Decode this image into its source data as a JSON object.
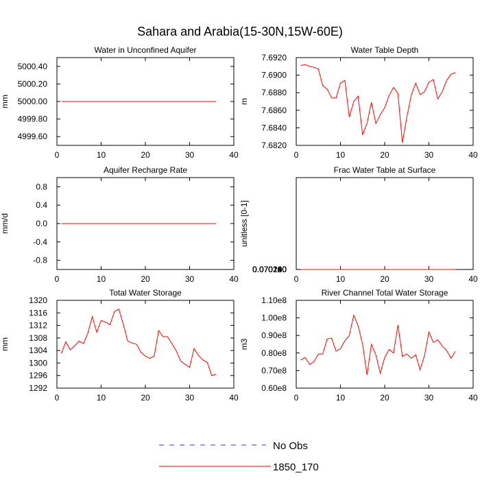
{
  "figure": {
    "title": "Sahara and Arabia(15-30N,15W-60E)"
  },
  "colors": {
    "model": "#ff0000",
    "obs": "#3030c8"
  },
  "legend": {
    "placement": "bottom-center",
    "entries": [
      {
        "label": "No Obs",
        "style": "dashed",
        "color": "#3030c8"
      },
      {
        "label": "1850_170",
        "style": "solid",
        "color": "#ff0000"
      }
    ]
  },
  "chart_data": [
    {
      "type": "line",
      "title": "Water in Unconfined Aquifer",
      "ylabel": "mm",
      "xlim": [
        0,
        40
      ],
      "ylim": [
        4999.5,
        5000.5
      ],
      "xticks": [
        0,
        10,
        20,
        30,
        40
      ],
      "yticks": [
        4999.6,
        4999.8,
        5000.0,
        5000.2,
        5000.4
      ],
      "yticklabels": [
        "4999.60",
        "4999.80",
        "5000.00",
        "5000.20",
        "5000.40"
      ],
      "series": [
        {
          "name": "1850_170",
          "x": [
            1,
            2,
            3,
            4,
            5,
            6,
            7,
            8,
            9,
            10,
            11,
            12,
            13,
            14,
            15,
            16,
            17,
            18,
            19,
            20,
            21,
            22,
            23,
            24,
            25,
            26,
            27,
            28,
            29,
            30,
            31,
            32,
            33,
            34,
            35,
            36
          ],
          "values": [
            5000,
            5000,
            5000,
            5000,
            5000,
            5000,
            5000,
            5000,
            5000,
            5000,
            5000,
            5000,
            5000,
            5000,
            5000,
            5000,
            5000,
            5000,
            5000,
            5000,
            5000,
            5000,
            5000,
            5000,
            5000,
            5000,
            5000,
            5000,
            5000,
            5000,
            5000,
            5000,
            5000,
            5000,
            5000,
            5000
          ]
        }
      ]
    },
    {
      "type": "line",
      "title": "Water Table Depth",
      "ylabel": "m",
      "xlim": [
        0,
        40
      ],
      "ylim": [
        7.682,
        7.692
      ],
      "xticks": [
        0,
        10,
        20,
        30,
        40
      ],
      "yticks": [
        7.682,
        7.684,
        7.686,
        7.688,
        7.69,
        7.692
      ],
      "yticklabels": [
        "7.6820",
        "7.6840",
        "7.6860",
        "7.6880",
        "7.6900",
        "7.6920"
      ],
      "series": [
        {
          "name": "1850_170",
          "x": [
            1,
            2,
            3,
            4,
            5,
            6,
            7,
            8,
            9,
            10,
            11,
            12,
            13,
            14,
            15,
            16,
            17,
            18,
            19,
            20,
            21,
            22,
            23,
            24,
            25,
            26,
            27,
            28,
            29,
            30,
            31,
            32,
            33,
            34,
            35,
            36
          ],
          "values": [
            7.6911,
            7.6912,
            7.691,
            7.6909,
            7.6907,
            7.6888,
            7.6884,
            7.6874,
            7.6874,
            7.6891,
            7.6894,
            7.6852,
            7.687,
            7.6876,
            7.6832,
            7.6845,
            7.6869,
            7.6845,
            7.6855,
            7.6863,
            7.6877,
            7.6886,
            7.6879,
            7.6823,
            7.6852,
            7.6877,
            7.6891,
            7.6878,
            7.6881,
            7.6892,
            7.6895,
            7.6873,
            7.6881,
            7.6894,
            7.6901,
            7.6903
          ]
        }
      ]
    },
    {
      "type": "line",
      "title": "Aquifer Recharge Rate",
      "ylabel": "mm/d",
      "xlim": [
        0,
        40
      ],
      "ylim": [
        -1.0,
        1.0
      ],
      "xticks": [
        0,
        10,
        20,
        30,
        40
      ],
      "yticks": [
        -0.8,
        -0.4,
        0.0,
        0.4,
        0.8
      ],
      "yticklabels": [
        "-0.8",
        "-0.4",
        "0.0",
        "0.4",
        "0.8"
      ],
      "series": [
        {
          "name": "1850_170",
          "x": [
            1,
            2,
            3,
            4,
            5,
            6,
            7,
            8,
            9,
            10,
            11,
            12,
            13,
            14,
            15,
            16,
            17,
            18,
            19,
            20,
            21,
            22,
            23,
            24,
            25,
            26,
            27,
            28,
            29,
            30,
            31,
            32,
            33,
            34,
            35,
            36
          ],
          "values": [
            0,
            0,
            0,
            0,
            0,
            0,
            0,
            0,
            0,
            0,
            0,
            0,
            0,
            0,
            0,
            0,
            0,
            0,
            0,
            0,
            0,
            0,
            0,
            0,
            0,
            0,
            0,
            0,
            0,
            0,
            0,
            0,
            0,
            0,
            0,
            0
          ]
        }
      ]
    },
    {
      "type": "line",
      "title": "Frac Water Table at Surface",
      "ylabel": "unitless [0-1]",
      "xlim": [
        0,
        40
      ],
      "ylim": [
        0.0701,
        0.7024
      ],
      "xticks": [
        0,
        10,
        20,
        30,
        40
      ],
      "yticks": [
        0.0701,
        0.07012,
        0.07014,
        0.07016,
        0.07018,
        0.0702,
        0.07022,
        0.07024
      ],
      "yticklabels": [
        "0.070100",
        "0.070120",
        "0.070140",
        "0.070160",
        "0.070180",
        "0.070200",
        "0.070220",
        "0.070240"
      ],
      "series": [
        {
          "name": "1850_170",
          "x": [
            1,
            2,
            3,
            4,
            5,
            6,
            7,
            8,
            9,
            10,
            11,
            12,
            13,
            14,
            15,
            16,
            17,
            18,
            19,
            20,
            21,
            22,
            23,
            24,
            25,
            26,
            27,
            28,
            29,
            30,
            31,
            32,
            33,
            34,
            35,
            36
          ],
          "values": [
            0.070111,
            0.07011,
            0.070112,
            0.070114,
            0.070116,
            0.070142,
            0.070147,
            0.07016,
            0.07016,
            0.070137,
            0.070133,
            0.07019,
            0.070166,
            0.07016,
            0.07022,
            0.070205,
            0.070168,
            0.070199,
            0.070186,
            0.070176,
            0.070155,
            0.070144,
            0.070153,
            0.070227,
            0.070193,
            0.070155,
            0.070139,
            0.070155,
            0.070151,
            0.070136,
            0.070132,
            0.070161,
            0.070154,
            0.070137,
            0.070126,
            0.070123
          ]
        }
      ]
    },
    {
      "type": "line",
      "title": "Total Water Storage",
      "ylabel": "mm",
      "xlim": [
        0,
        40
      ],
      "ylim": [
        1292,
        1320
      ],
      "xticks": [
        0,
        10,
        20,
        30,
        40
      ],
      "yticks": [
        1292,
        1296,
        1300,
        1304,
        1308,
        1312,
        1316,
        1320
      ],
      "yticklabels": [
        "1292",
        "1296",
        "1300",
        "1304",
        "1308",
        "1312",
        "1316",
        "1320"
      ],
      "series": [
        {
          "name": "1850_170",
          "x": [
            1,
            2,
            3,
            4,
            5,
            6,
            7,
            8,
            9,
            10,
            11,
            12,
            13,
            14,
            15,
            16,
            17,
            18,
            19,
            20,
            21,
            22,
            23,
            24,
            25,
            26,
            27,
            28,
            29,
            30,
            31,
            32,
            33,
            34,
            35,
            36
          ],
          "values": [
            1303.0,
            1306.8,
            1304.2,
            1305.5,
            1307.0,
            1306.2,
            1309.6,
            1314.8,
            1309.8,
            1313.6,
            1313.0,
            1312.2,
            1316.4,
            1317.2,
            1312.4,
            1307.0,
            1306.4,
            1306.0,
            1303.4,
            1302.2,
            1301.5,
            1302.2,
            1310.4,
            1308.4,
            1308.4,
            1306.2,
            1303.8,
            1300.6,
            1299.6,
            1298.6,
            1304.6,
            1302.4,
            1301.0,
            1300.2,
            1296.0,
            1296.4
          ]
        }
      ]
    },
    {
      "type": "line",
      "title": "River Channel Total Water Storage",
      "ylabel": "m3",
      "xlim": [
        0,
        40
      ],
      "ylim": [
        60000000.0,
        110000000.0
      ],
      "xticks": [
        0,
        10,
        20,
        30,
        40
      ],
      "yticks": [
        60000000.0,
        70000000.0,
        80000000.0,
        90000000.0,
        100000000.0,
        110000000.0
      ],
      "yticklabels": [
        "0.60e8",
        "0.70e8",
        "0.80e8",
        "0.90e8",
        "1.00e8",
        "1.10e8"
      ],
      "series": [
        {
          "name": "1850_170",
          "x": [
            1,
            2,
            3,
            4,
            5,
            6,
            7,
            8,
            9,
            10,
            11,
            12,
            13,
            14,
            15,
            16,
            17,
            18,
            19,
            20,
            21,
            22,
            23,
            24,
            25,
            26,
            27,
            28,
            29,
            30,
            31,
            32,
            33,
            34,
            35,
            36
          ],
          "values": [
            76000000.0,
            77500000.0,
            73500000.0,
            75000000.0,
            79500000.0,
            79500000.0,
            88000000.0,
            88500000.0,
            81000000.0,
            82500000.0,
            87000000.0,
            90000000.0,
            101500000.0,
            95500000.0,
            85000000.0,
            67500000.0,
            85000000.0,
            79000000.0,
            68500000.0,
            77500000.0,
            82000000.0,
            80000000.0,
            96000000.0,
            78000000.0,
            79500000.0,
            77000000.0,
            79000000.0,
            70500000.0,
            78500000.0,
            92000000.0,
            86000000.0,
            87500000.0,
            84000000.0,
            81500000.0,
            77000000.0,
            81000000.0
          ]
        }
      ]
    }
  ]
}
